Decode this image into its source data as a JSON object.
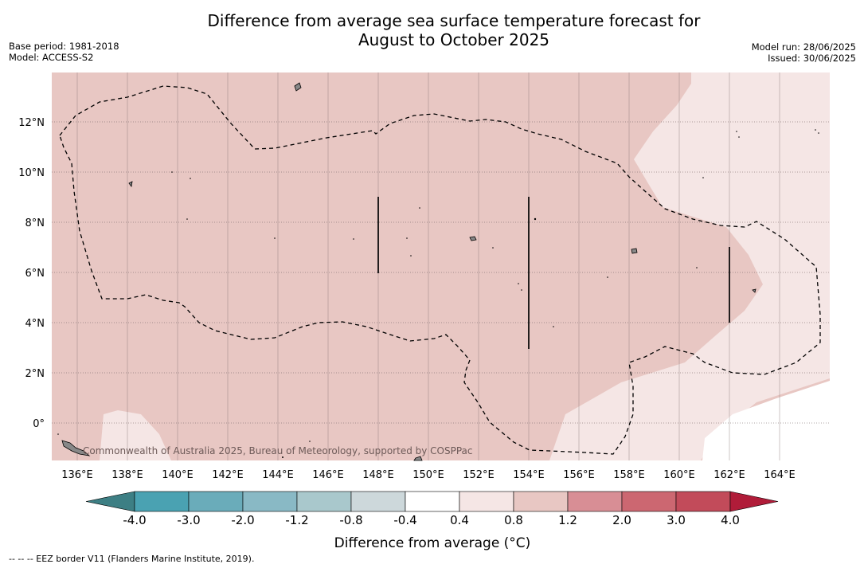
{
  "title_line1": "Difference from average sea surface temperature forecast for",
  "title_line2": "August to October 2025",
  "base_period": "Base period: 1981-2018",
  "model": "Model: ACCESS-S2",
  "model_run": "Model run: 28/06/2025",
  "issued": "Issued: 30/06/2025",
  "lon_labels": [
    "136°E",
    "138°E",
    "140°E",
    "142°E",
    "144°E",
    "146°E",
    "148°E",
    "150°E",
    "152°E",
    "154°E",
    "156°E",
    "158°E",
    "160°E",
    "162°E",
    "164°E"
  ],
  "lat_labels": [
    "12°N",
    "10°N",
    "8°N",
    "6°N",
    "4°N",
    "2°N",
    "0°"
  ],
  "copyright": "Commonwealth of Australia 2025, Bureau of Meteorology, supported by COSPPac",
  "colorbar": {
    "title": "Difference from average (°C)",
    "labels": [
      "-4.0",
      "-3.0",
      "-2.0",
      "-1.2",
      "-0.8",
      "-0.4",
      "0.4",
      "0.8",
      "1.2",
      "2.0",
      "3.0",
      "4.0"
    ],
    "colors": [
      "#3d7f84",
      "#4aa2b2",
      "#6aacba",
      "#89b9c5",
      "#a9c8cc",
      "#cdd8db",
      "#ffffff",
      "#f5e6e5",
      "#e8c7c3",
      "#d88e95",
      "#cc6771",
      "#c24b5a",
      "#b01c39"
    ]
  },
  "footnote": "--  --  -- EEZ border V11 (Flanders Marine Institute, 2019)."
}
